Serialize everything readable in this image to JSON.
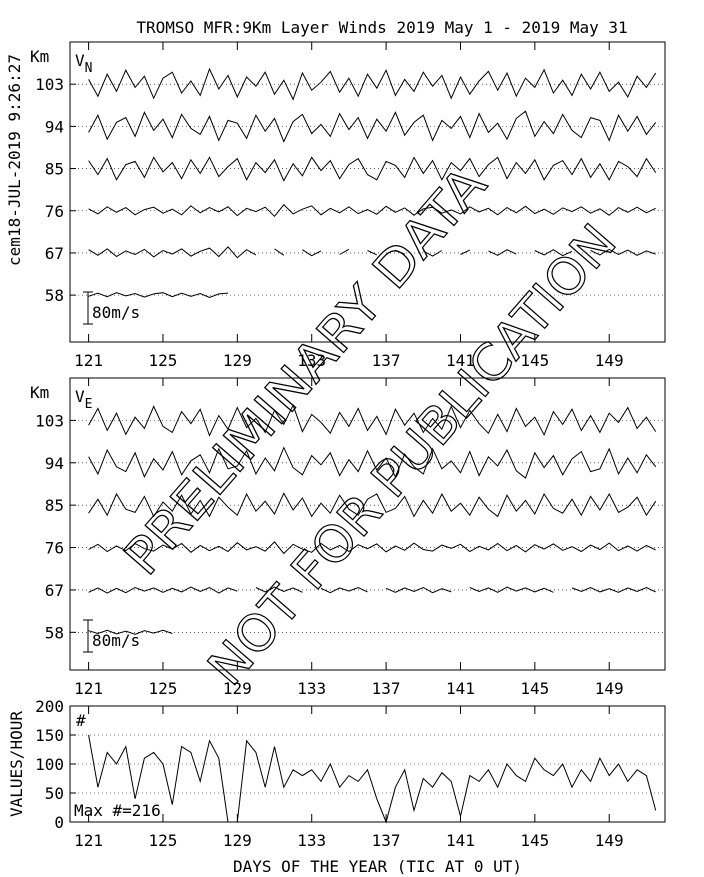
{
  "title": "TROMSO MFR:9Km Layer Winds 2019 May  1 - 2019 May 31",
  "stamp": "cem18-JUL-2019   9:26:27",
  "watermarks": [
    "PRELIMINARY DATA",
    "NOT FOR PUBLICATION"
  ],
  "chart_data": [
    {
      "type": "wind",
      "panel_label": "V",
      "panel_subscript": "N",
      "y_label": "Km",
      "scale_bar": {
        "value": 80,
        "label": "80m/s"
      },
      "xlim": [
        120,
        152
      ],
      "xticks": [
        121,
        125,
        129,
        133,
        137,
        141,
        145,
        149
      ],
      "ylim": [
        48,
        112
      ],
      "yticks": [
        58,
        67,
        76,
        85,
        94,
        103
      ],
      "grid": true,
      "color": "#000000",
      "x": [
        121,
        121.5,
        122,
        122.5,
        123,
        123.5,
        124,
        124.5,
        125,
        125.5,
        126,
        126.5,
        127,
        127.5,
        128,
        128.5,
        129,
        129.5,
        130,
        130.5,
        131,
        131.5,
        132,
        132.5,
        133,
        133.5,
        134,
        134.5,
        135,
        135.5,
        136,
        136.5,
        137,
        137.5,
        138,
        138.5,
        139,
        139.5,
        140,
        140.5,
        141,
        141.5,
        142,
        142.5,
        143,
        143.5,
        144,
        144.5,
        145,
        145.5,
        146,
        146.5,
        147,
        147.5,
        148,
        148.5,
        149,
        149.5,
        150,
        150.5,
        151,
        151.5
      ],
      "series": [
        {
          "baseline": 103,
          "values": [
            12,
            -30,
            25,
            -18,
            35,
            -8,
            20,
            -35,
            15,
            30,
            -22,
            8,
            -28,
            38,
            -12,
            22,
            -32,
            18,
            -5,
            30,
            -25,
            10,
            -38,
            28,
            -15,
            5,
            32,
            -20,
            15,
            -30,
            25,
            -10,
            35,
            -28,
            12,
            -18,
            30,
            -5,
            22,
            -35,
            18,
            -25,
            8,
            32,
            -15,
            28,
            -30,
            15,
            -8,
            36,
            -22,
            10,
            -28,
            25,
            -12,
            30,
            -18,
            5,
            -32,
            20,
            -8,
            28
          ]
        },
        {
          "baseline": 94,
          "values": [
            -15,
            28,
            -32,
            10,
            22,
            -25,
            35,
            -10,
            18,
            -28,
            30,
            -5,
            -20,
            25,
            -35,
            15,
            8,
            -30,
            28,
            -12,
            20,
            -38,
            12,
            30,
            -18,
            5,
            -25,
            32,
            -8,
            22,
            -30,
            18,
            -12,
            35,
            -22,
            10,
            28,
            -35,
            15,
            -5,
            25,
            -28,
            32,
            -15,
            8,
            -32,
            20,
            38,
            -25,
            12,
            -18,
            30,
            -10,
            -28,
            22,
            15,
            -35,
            28,
            -12,
            25,
            -20,
            10
          ]
        },
        {
          "baseline": 85,
          "values": [
            20,
            -15,
            25,
            -28,
            10,
            18,
            -22,
            28,
            -8,
            15,
            -25,
            22,
            -12,
            28,
            -20,
            5,
            25,
            -28,
            15,
            -10,
            22,
            -30,
            12,
            -18,
            28,
            -5,
            20,
            -25,
            10,
            25,
            -15,
            -28,
            18,
            8,
            -22,
            28,
            -12,
            20,
            -28,
            15,
            -5,
            25,
            -20,
            10,
            28,
            -25,
            15,
            -12,
            22,
            -28,
            8,
            20,
            -15,
            25,
            -22,
            12,
            -28,
            18,
            5,
            -20,
            25,
            -10
          ]
        },
        {
          "baseline": 76,
          "values": [
            5,
            -8,
            10,
            -4,
            8,
            -10,
            3,
            9,
            -6,
            4,
            -10,
            12,
            -5,
            8,
            -3,
            10,
            -12,
            6,
            -2,
            9,
            -14,
            15,
            -8,
            4,
            12,
            -10,
            6,
            -5,
            10,
            -7,
            3,
            -9,
            11,
            -4,
            7,
            -11,
            5,
            9,
            -6,
            2,
            -8,
            10,
            -3,
            6,
            -10,
            8,
            -5,
            11,
            -7,
            4,
            -9,
            7,
            -2,
            10,
            -6,
            5,
            -11,
            8,
            -4,
            9,
            -5,
            6
          ]
        },
        {
          "baseline": 67,
          "values": [
            8,
            -6,
            10,
            -9,
            5,
            -4,
            9,
            -10,
            6,
            -3,
            10,
            -8,
            4,
            12,
            -9,
            15,
            -12,
            8,
            -5,
            null,
            10,
            -6,
            null,
            8,
            -7,
            5,
            null,
            -4,
            9,
            null,
            6,
            -5,
            null,
            7,
            -3,
            null,
            5,
            -8,
            6,
            null,
            -4,
            7,
            null,
            5,
            -6,
            8,
            -3,
            null,
            6,
            -5,
            8,
            -7,
            4,
            null,
            6,
            -5,
            9,
            -4,
            7,
            -6,
            5,
            -3
          ]
        },
        {
          "baseline": 58,
          "values": [
            -3,
            5,
            -4,
            6,
            -2,
            4,
            -5,
            3,
            6,
            -4,
            5,
            -3,
            4,
            -6,
            3,
            5,
            null,
            null,
            null,
            null,
            null,
            null,
            null,
            null,
            null,
            null,
            null,
            null,
            null,
            null,
            null,
            null,
            null,
            null,
            null,
            null,
            null,
            null,
            null,
            null,
            null,
            null,
            null,
            null,
            null,
            null,
            null,
            null,
            null,
            null,
            null,
            null,
            null,
            null,
            null,
            null,
            null,
            null,
            null,
            null,
            null,
            null
          ]
        }
      ]
    },
    {
      "type": "wind",
      "panel_label": "V",
      "panel_subscript": "E",
      "y_label": "Km",
      "scale_bar": {
        "value": 80,
        "label": "80m/s"
      },
      "xlim": [
        120,
        152
      ],
      "xticks": [
        121,
        125,
        129,
        133,
        137,
        141,
        145,
        149
      ],
      "ylim": [
        50,
        112
      ],
      "yticks": [
        58,
        67,
        76,
        85,
        94,
        103
      ],
      "grid": true,
      "color": "#000000",
      "x": [
        121,
        121.5,
        122,
        122.5,
        123,
        123.5,
        124,
        124.5,
        125,
        125.5,
        126,
        126.5,
        127,
        127.5,
        128,
        128.5,
        129,
        129.5,
        130,
        130.5,
        131,
        131.5,
        132,
        132.5,
        133,
        133.5,
        134,
        134.5,
        135,
        135.5,
        136,
        136.5,
        137,
        137.5,
        138,
        138.5,
        139,
        139.5,
        140,
        140.5,
        141,
        141.5,
        142,
        142.5,
        143,
        143.5,
        144,
        144.5,
        145,
        145.5,
        146,
        146.5,
        147,
        147.5,
        148,
        148.5,
        149,
        149.5,
        150,
        150.5,
        151,
        151.5
      ],
      "series": [
        {
          "baseline": 103,
          "values": [
            -12,
            30,
            -25,
            18,
            -35,
            8,
            -20,
            35,
            -15,
            -30,
            22,
            -8,
            28,
            -38,
            12,
            -22,
            32,
            -18,
            5,
            -30,
            25,
            -10,
            38,
            -28,
            15,
            -5,
            -32,
            20,
            -15,
            30,
            -25,
            10,
            -35,
            28,
            -12,
            18,
            -30,
            5,
            -22,
            35,
            -18,
            25,
            -8,
            -32,
            15,
            -28,
            30,
            -15,
            8,
            -36,
            22,
            -10,
            28,
            -25,
            12,
            -30,
            18,
            -5,
            32,
            -20,
            8,
            -28
          ]
        },
        {
          "baseline": 94,
          "values": [
            15,
            -28,
            32,
            -10,
            -22,
            25,
            -35,
            10,
            -18,
            28,
            -30,
            5,
            20,
            -25,
            35,
            -15,
            -8,
            30,
            -28,
            12,
            -20,
            38,
            -12,
            -30,
            18,
            -5,
            25,
            -32,
            8,
            -22,
            30,
            -18,
            12,
            -35,
            22,
            -10,
            -28,
            35,
            -15,
            5,
            -25,
            28,
            -32,
            15,
            -8,
            32,
            -20,
            -38,
            25,
            -12,
            18,
            -30,
            10,
            28,
            -22,
            -15,
            35,
            -28,
            12,
            -25,
            20,
            -10
          ]
        },
        {
          "baseline": 85,
          "values": [
            -20,
            15,
            -25,
            28,
            -10,
            -18,
            22,
            -28,
            8,
            -15,
            25,
            -22,
            12,
            -28,
            20,
            -5,
            -25,
            28,
            -15,
            10,
            -22,
            30,
            -12,
            18,
            -28,
            5,
            -20,
            25,
            -10,
            -25,
            15,
            28,
            -18,
            -8,
            22,
            -28,
            12,
            -20,
            28,
            -15,
            5,
            -25,
            20,
            -10,
            -28,
            25,
            -15,
            12,
            -22,
            28,
            -8,
            -20,
            15,
            -25,
            22,
            -12,
            28,
            -18,
            -5,
            20,
            -25,
            10
          ]
        },
        {
          "baseline": 76,
          "values": [
            -5,
            8,
            -10,
            4,
            -8,
            10,
            -3,
            -9,
            6,
            -4,
            10,
            -12,
            5,
            -8,
            3,
            -10,
            12,
            -6,
            2,
            -9,
            14,
            -15,
            8,
            -4,
            -12,
            10,
            -6,
            5,
            -10,
            7,
            -3,
            9,
            -11,
            4,
            -7,
            11,
            -5,
            -9,
            6,
            -2,
            8,
            -10,
            3,
            -6,
            10,
            -8,
            5,
            -11,
            7,
            -4,
            9,
            -7,
            2,
            -10,
            6,
            -5,
            11,
            -8,
            4,
            -9,
            5,
            -6
          ]
        },
        {
          "baseline": 67,
          "values": [
            -6,
            5,
            -8,
            4,
            -7,
            6,
            -3,
            5,
            -6,
            4,
            -5,
            7,
            -4,
            6,
            -8,
            5,
            -3,
            null,
            6,
            -5,
            7,
            -4,
            5,
            -6,
            null,
            4,
            -7,
            5,
            -3,
            6,
            -5,
            null,
            4,
            -6,
            5,
            -4,
            6,
            -7,
            3,
            -5,
            null,
            6,
            -4,
            5,
            -6,
            7,
            -3,
            5,
            -5,
            4,
            -6,
            null,
            5,
            -4,
            6,
            -5,
            3,
            -6,
            5,
            -4,
            6,
            -5
          ]
        },
        {
          "baseline": 58,
          "values": [
            4,
            -3,
            5,
            -4,
            3,
            -5,
            4,
            -2,
            5,
            -3,
            null,
            null,
            null,
            null,
            null,
            null,
            null,
            null,
            null,
            null,
            null,
            null,
            null,
            null,
            null,
            null,
            null,
            null,
            null,
            null,
            null,
            null,
            null,
            null,
            null,
            null,
            null,
            null,
            null,
            null,
            null,
            null,
            null,
            null,
            null,
            null,
            null,
            null,
            null,
            null,
            null,
            null,
            null,
            null,
            null,
            null,
            null,
            null,
            null,
            null,
            null,
            null
          ]
        }
      ]
    },
    {
      "type": "line",
      "y_label": "VALUES/HOUR",
      "x_label": "DAYS OF THE YEAR (TIC AT 0 UT)",
      "annotations": [
        "#",
        "Max #=216"
      ],
      "xlim": [
        120,
        152
      ],
      "xticks": [
        121,
        125,
        129,
        133,
        137,
        141,
        145,
        149
      ],
      "ylim": [
        0,
        200
      ],
      "yticks": [
        0,
        50,
        100,
        150,
        200
      ],
      "grid": true,
      "color": "#000000",
      "x": [
        121,
        121.5,
        122,
        122.5,
        123,
        123.5,
        124,
        124.5,
        125,
        125.5,
        126,
        126.5,
        127,
        127.5,
        128,
        128.5,
        129,
        129.5,
        130,
        130.5,
        131,
        131.5,
        132,
        132.5,
        133,
        133.5,
        134,
        134.5,
        135,
        135.5,
        136,
        136.5,
        137,
        137.5,
        138,
        138.5,
        139,
        139.5,
        140,
        140.5,
        141,
        141.5,
        142,
        142.5,
        143,
        143.5,
        144,
        144.5,
        145,
        145.5,
        146,
        146.5,
        147,
        147.5,
        148,
        148.5,
        149,
        149.5,
        150,
        150.5,
        151,
        151.5
      ],
      "values": [
        150,
        60,
        120,
        100,
        130,
        40,
        110,
        120,
        100,
        30,
        130,
        120,
        70,
        140,
        110,
        0,
        0,
        140,
        120,
        60,
        130,
        60,
        90,
        80,
        90,
        70,
        100,
        60,
        80,
        70,
        90,
        40,
        0,
        60,
        90,
        20,
        75,
        60,
        85,
        70,
        10,
        80,
        70,
        90,
        60,
        100,
        80,
        70,
        110,
        90,
        80,
        100,
        60,
        90,
        70,
        110,
        80,
        100,
        70,
        90,
        80,
        20
      ]
    }
  ]
}
